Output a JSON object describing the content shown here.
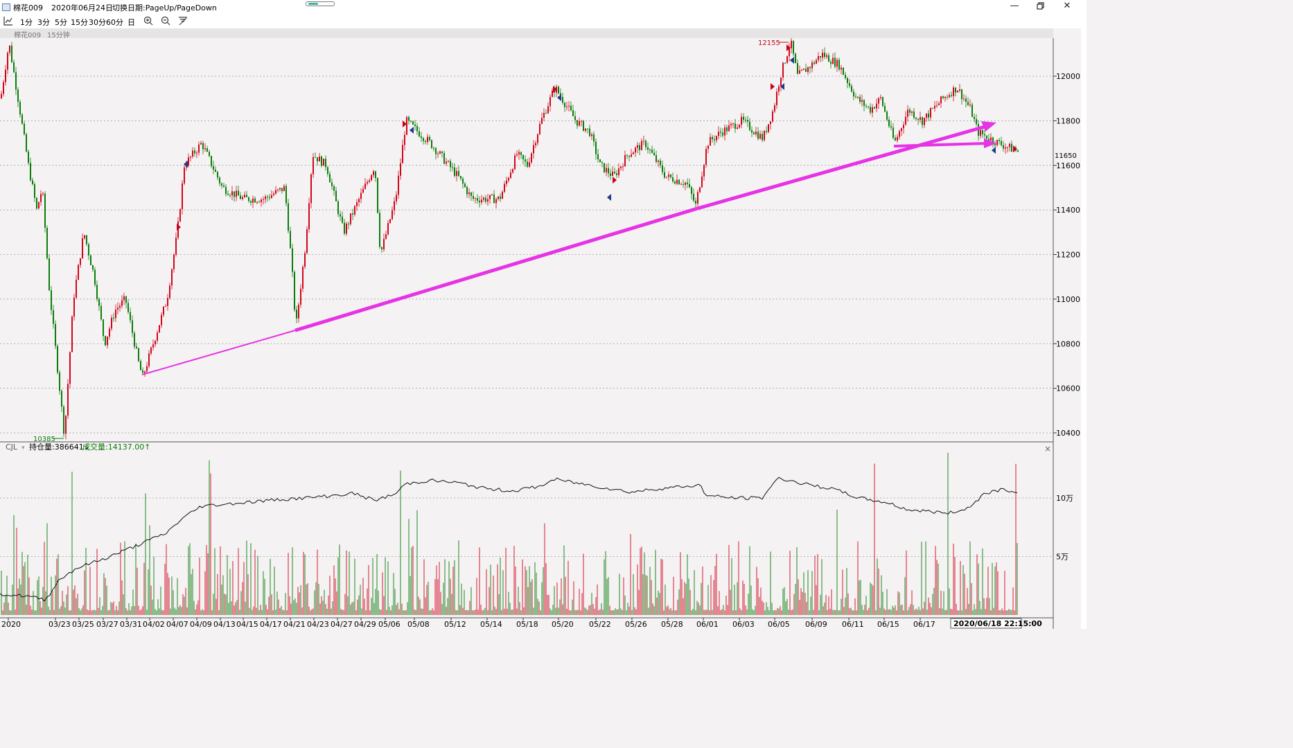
{
  "window": {
    "app_title": "棉花009",
    "date": "2020年06月24日",
    "switch_hint": "切换日期:PageUp/PageDown",
    "icons": {
      "minimize": "minimize-icon",
      "restore": "restore-icon",
      "close": "close-icon"
    }
  },
  "toolbar": {
    "chart_type_icon": "line-chart-icon",
    "periods": [
      "1分",
      "3分",
      "5分",
      "15分",
      "30分",
      "60分"
    ],
    "zoom_in_icon": "zoom-in-icon",
    "zoom_out_icon": "zoom-out-icon",
    "day_label": "日",
    "reset_icon": "reset-zoom-icon"
  },
  "chart_header": {
    "symbol": "棉花009",
    "period": "15分钟"
  },
  "chart_data": {
    "type": "candlestick",
    "price_axis": {
      "ticks": [
        10400,
        10600,
        10800,
        11000,
        11200,
        11400,
        11600,
        11800,
        12000
      ],
      "current_price": 11650,
      "ylim": [
        10385,
        12155
      ]
    },
    "markers": {
      "high": "12155",
      "low": "10385"
    },
    "x_tick_labels": [
      "2020",
      "03/23",
      "03/25",
      "03/27",
      "03/31",
      "04/02",
      "04/07",
      "04/09",
      "04/13",
      "04/15",
      "04/17",
      "04/21",
      "04/23",
      "04/27",
      "04/29",
      "05/06",
      "05/08",
      "05/12",
      "05/14",
      "05/18",
      "05/20",
      "05/22",
      "05/26",
      "05/28",
      "06/01",
      "06/03",
      "06/05",
      "06/09",
      "06/11",
      "06/15",
      "06/17"
    ],
    "cursor_time": "2020/06/18 22:15:00",
    "price_anchors": [
      [
        0,
        11900
      ],
      [
        12,
        12150
      ],
      [
        25,
        11900
      ],
      [
        40,
        11600
      ],
      [
        52,
        11400
      ],
      [
        60,
        11500
      ],
      [
        70,
        11050
      ],
      [
        85,
        10600
      ],
      [
        92,
        10385
      ],
      [
        105,
        11000
      ],
      [
        120,
        11300
      ],
      [
        135,
        11100
      ],
      [
        150,
        10800
      ],
      [
        165,
        10950
      ],
      [
        180,
        11000
      ],
      [
        200,
        10700
      ],
      [
        205,
        10650
      ],
      [
        220,
        10800
      ],
      [
        240,
        11000
      ],
      [
        255,
        11300
      ],
      [
        265,
        11600
      ],
      [
        290,
        11700
      ],
      [
        320,
        11500
      ],
      [
        350,
        11450
      ],
      [
        380,
        11450
      ],
      [
        410,
        11500
      ],
      [
        420,
        11150
      ],
      [
        426,
        10870
      ],
      [
        440,
        11250
      ],
      [
        450,
        11650
      ],
      [
        470,
        11600
      ],
      [
        495,
        11300
      ],
      [
        510,
        11400
      ],
      [
        540,
        11600
      ],
      [
        548,
        11200
      ],
      [
        570,
        11450
      ],
      [
        585,
        11800
      ],
      [
        620,
        11700
      ],
      [
        660,
        11550
      ],
      [
        680,
        11450
      ],
      [
        720,
        11450
      ],
      [
        745,
        11650
      ],
      [
        760,
        11600
      ],
      [
        780,
        11800
      ],
      [
        800,
        11950
      ],
      [
        830,
        11800
      ],
      [
        850,
        11750
      ],
      [
        865,
        11600
      ],
      [
        885,
        11550
      ],
      [
        905,
        11650
      ],
      [
        930,
        11700
      ],
      [
        960,
        11550
      ],
      [
        990,
        11520
      ],
      [
        1003,
        11420
      ],
      [
        1020,
        11700
      ],
      [
        1040,
        11750
      ],
      [
        1070,
        11800
      ],
      [
        1100,
        11720
      ],
      [
        1115,
        11850
      ],
      [
        1125,
        12000
      ],
      [
        1140,
        12155
      ],
      [
        1150,
        12000
      ],
      [
        1170,
        12050
      ],
      [
        1185,
        12100
      ],
      [
        1210,
        12050
      ],
      [
        1235,
        11900
      ],
      [
        1255,
        11850
      ],
      [
        1270,
        11900
      ],
      [
        1290,
        11700
      ],
      [
        1310,
        11850
      ],
      [
        1330,
        11800
      ],
      [
        1360,
        11900
      ],
      [
        1380,
        11950
      ],
      [
        1400,
        11850
      ],
      [
        1410,
        11750
      ],
      [
        1440,
        11700
      ],
      [
        1470,
        11660
      ]
    ],
    "volume_axis": {
      "ticks_label": [
        "5万",
        "10万"
      ],
      "ticks_value": [
        50000,
        100000
      ],
      "ymax": 140000
    },
    "open_interest_anchors": [
      [
        0,
        18000
      ],
      [
        40,
        16000
      ],
      [
        66,
        13000
      ],
      [
        85,
        30000
      ],
      [
        110,
        40000
      ],
      [
        150,
        48000
      ],
      [
        200,
        60000
      ],
      [
        240,
        70000
      ],
      [
        262,
        82000
      ],
      [
        290,
        93000
      ],
      [
        330,
        95000
      ],
      [
        370,
        97000
      ],
      [
        410,
        99000
      ],
      [
        440,
        100000
      ],
      [
        480,
        102000
      ],
      [
        510,
        104000
      ],
      [
        540,
        98000
      ],
      [
        570,
        103000
      ],
      [
        585,
        112000
      ],
      [
        620,
        115000
      ],
      [
        660,
        113000
      ],
      [
        700,
        108000
      ],
      [
        740,
        106000
      ],
      [
        780,
        110000
      ],
      [
        800,
        116000
      ],
      [
        840,
        112000
      ],
      [
        880,
        108000
      ],
      [
        910,
        105000
      ],
      [
        950,
        108000
      ],
      [
        990,
        110000
      ],
      [
        1010,
        111000
      ],
      [
        1020,
        102000
      ],
      [
        1060,
        100000
      ],
      [
        1100,
        100000
      ],
      [
        1115,
        112000
      ],
      [
        1125,
        117000
      ],
      [
        1160,
        112000
      ],
      [
        1200,
        108000
      ],
      [
        1240,
        100000
      ],
      [
        1280,
        96000
      ],
      [
        1310,
        90000
      ],
      [
        1350,
        88000
      ],
      [
        1370,
        87000
      ],
      [
        1400,
        92000
      ],
      [
        1420,
        104000
      ],
      [
        1450,
        108000
      ],
      [
        1470,
        103000
      ]
    ],
    "legend": {
      "indicator": "CJL",
      "open_interest_label": "持仓量:386641↓",
      "volume_label": "成交量:14137.00↑"
    },
    "colors": {
      "up": "#d2041b",
      "down": "#0a7c0a",
      "trendline": "#e533e5",
      "grid": "#9a9a9a",
      "axis_text": "#000000",
      "marker_red": "#c8001e",
      "marker_blue": "#1f3a8c"
    }
  }
}
